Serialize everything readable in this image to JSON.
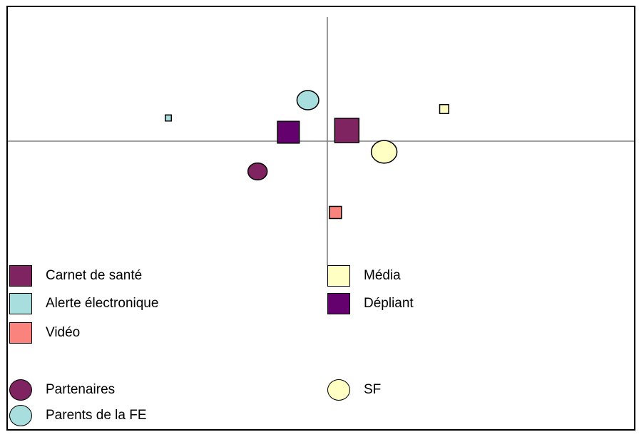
{
  "chart_data": {
    "type": "scatter",
    "grid": false,
    "axes": {
      "x_origin": 0,
      "y_origin": 0,
      "xlim": [
        -1.0,
        0.93
      ],
      "ylim": [
        -0.38,
        0.42
      ]
    },
    "series": [
      {
        "name": "Carnet de santé",
        "shape": "square",
        "color": "#7f2361",
        "points": [
          {
            "x": 0.06,
            "y": 0.03,
            "size": 1.0
          }
        ]
      },
      {
        "name": "Alerte électronique",
        "shape": "square",
        "color": "#a8dedd",
        "points": [
          {
            "x": -0.49,
            "y": 0.065,
            "size": 0.25
          }
        ]
      },
      {
        "name": "Vidéo",
        "shape": "square",
        "color": "#fb837e",
        "points": [
          {
            "x": 0.025,
            "y": -0.2,
            "size": 0.5
          }
        ]
      },
      {
        "name": "Média",
        "shape": "square",
        "color": "#ffffc4",
        "points": [
          {
            "x": 0.36,
            "y": 0.09,
            "size": 0.37
          }
        ]
      },
      {
        "name": "Dépliant",
        "shape": "square",
        "color": "#65006f",
        "points": [
          {
            "x": -0.12,
            "y": 0.025,
            "size": 0.9
          }
        ]
      },
      {
        "name": "Partenaires",
        "shape": "circle",
        "color": "#7f2361",
        "points": [
          {
            "x": -0.215,
            "y": -0.085,
            "size": 0.75
          }
        ]
      },
      {
        "name": "Parents de la FE",
        "shape": "circle",
        "color": "#a8dedd",
        "points": [
          {
            "x": -0.06,
            "y": 0.115,
            "size": 0.85
          }
        ]
      },
      {
        "name": "SF",
        "shape": "circle",
        "color": "#ffffc4",
        "points": [
          {
            "x": 0.175,
            "y": -0.03,
            "size": 1.0
          }
        ]
      }
    ],
    "legend": {
      "placement": "bottom",
      "squares": [
        "Carnet de santé",
        "Média",
        "Alerte électronique",
        "Dépliant",
        "Vidéo"
      ],
      "circles": [
        "Partenaires",
        "SF",
        "Parents de la FE"
      ]
    }
  }
}
